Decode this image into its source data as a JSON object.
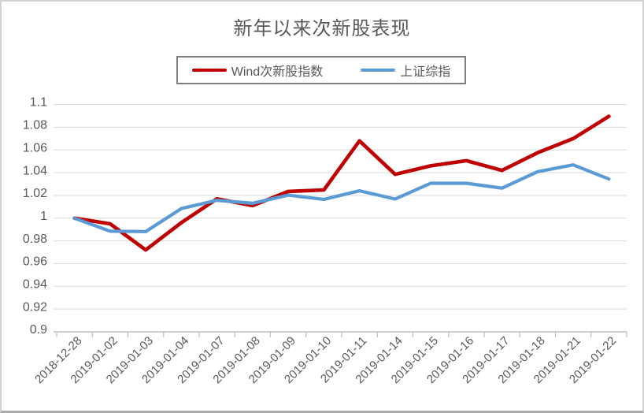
{
  "title": "新年以来次新股表现",
  "legend": {
    "items": [
      {
        "label": "Wind次新股指数",
        "color": "#C00000"
      },
      {
        "label": "上证综指",
        "color": "#5B9BD5"
      }
    ]
  },
  "colors": {
    "series_red": "#C00000",
    "series_blue": "#5B9BD5",
    "gridline": "#D9D9D9",
    "axis_line": "#BFBFBF",
    "text": "#595959",
    "legend_border": "#7F7F7F"
  },
  "chart_data": {
    "type": "line",
    "title": "新年以来次新股表现",
    "categories": [
      "2018-12-28",
      "2019-01-02",
      "2019-01-03",
      "2019-01-04",
      "2019-01-07",
      "2019-01-08",
      "2019-01-09",
      "2019-01-10",
      "2019-01-11",
      "2019-01-14",
      "2019-01-15",
      "2019-01-16",
      "2019-01-17",
      "2019-01-18",
      "2019-01-21",
      "2019-01-22"
    ],
    "series": [
      {
        "name": "Wind次新股指数",
        "color": "#C00000",
        "values": [
          1.0,
          0.995,
          0.972,
          0.996,
          1.017,
          1.011,
          1.0235,
          1.0248,
          1.068,
          1.0385,
          1.046,
          1.0505,
          1.042,
          1.0575,
          1.07,
          1.0895
        ]
      },
      {
        "name": "上证综指",
        "color": "#5B9BD5",
        "values": [
          1.0,
          0.9885,
          0.9882,
          1.0084,
          1.0157,
          1.0131,
          1.0202,
          1.0165,
          1.024,
          1.0168,
          1.0307,
          1.0307,
          1.0264,
          1.0409,
          1.0468,
          1.0344
        ]
      }
    ],
    "ylim": [
      0.9,
      1.1
    ],
    "ytick_step": 0.02,
    "ytick_labels": [
      "1.1",
      "1.08",
      "1.06",
      "1.04",
      "1.02",
      "1",
      "0.98",
      "0.96",
      "0.94",
      "0.92",
      "0.9"
    ],
    "grid": true,
    "legend_position": "top",
    "x_label_rotation": -45
  }
}
